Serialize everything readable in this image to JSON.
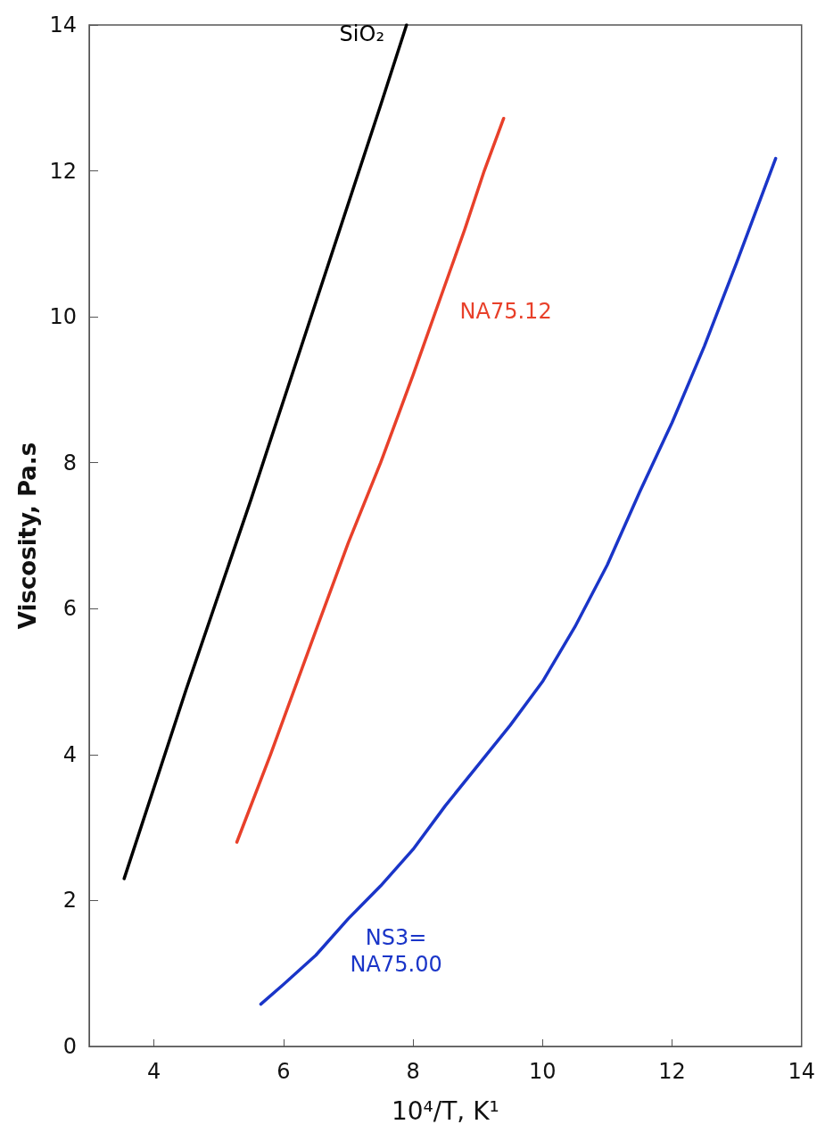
{
  "chart_data": {
    "type": "line",
    "xlabel": "10⁴/T, K¹",
    "ylabel": "Viscosity, Pa.s",
    "xlim": [
      3,
      14
    ],
    "xticks": [
      4,
      6,
      8,
      10,
      12,
      14
    ],
    "ylim": [
      0,
      14
    ],
    "yticks": [
      0,
      2,
      4,
      6,
      8,
      10,
      12,
      14
    ],
    "grid": false,
    "marker": "none",
    "line_style": "solid",
    "series": [
      {
        "name": "SiO₂",
        "color": "#000000",
        "x": [
          3.54,
          4.5,
          5.5,
          6.5,
          7.5,
          7.9
        ],
        "values": [
          2.3,
          4.9,
          7.5,
          10.2,
          12.9,
          14
        ]
      },
      {
        "name": "NA75.12",
        "color": "#e8402a",
        "x": [
          5.28,
          5.8,
          6.5,
          7.0,
          7.5,
          8.0,
          8.4,
          8.8,
          9.1,
          9.4
        ],
        "values": [
          2.8,
          4.0,
          5.7,
          6.9,
          8.0,
          9.2,
          10.2,
          11.2,
          12.0,
          12.72
        ]
      },
      {
        "name": "NS3=\nNA75.00",
        "color": "#1a35c8",
        "x": [
          5.65,
          6.0,
          6.5,
          7.0,
          7.5,
          8.0,
          8.5,
          9.0,
          9.5,
          10.0,
          10.5,
          11.0,
          11.5,
          12.0,
          12.5,
          13.0,
          13.6
        ],
        "values": [
          0.58,
          0.85,
          1.25,
          1.75,
          2.2,
          2.7,
          3.3,
          3.85,
          4.4,
          5.0,
          5.75,
          6.6,
          7.6,
          8.55,
          9.6,
          10.75,
          12.17
        ]
      }
    ]
  }
}
